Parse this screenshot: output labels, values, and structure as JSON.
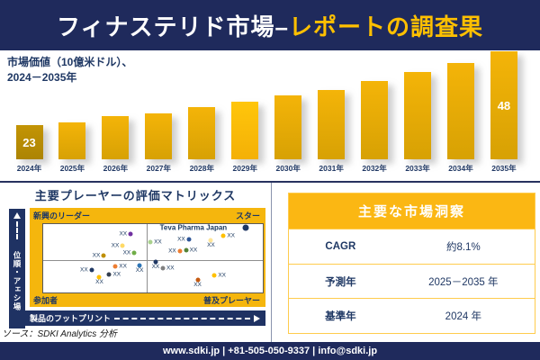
{
  "colors": {
    "navy": "#1F2A5C",
    "navy_text": "#1F3864",
    "gold_accent": "#FFC000",
    "bar_gold": "#D7A104",
    "bar_first_dark": "#AC8403",
    "bar_bright": "#FFC60B",
    "matrix_gold": "#F5B60D",
    "insights_header_gold": "#FBB713",
    "table_border_gold": "#FFCC4D"
  },
  "header": {
    "title_white": "フィナステリド市場–",
    "title_gold": "レポートの調査果"
  },
  "bar_section": {
    "subtitle_line1": "市場価値（10億米ドル）、",
    "subtitle_line2": "2024－2035年"
  },
  "chart_data": [
    {
      "type": "bar",
      "title": "市場価値（10億米ドル）、2024－2035年",
      "categories": [
        "2024年",
        "2025年",
        "2026年",
        "2027年",
        "2028年",
        "2029年",
        "2030年",
        "2031年",
        "2032年",
        "2033年",
        "2034年",
        "2035年"
      ],
      "values": [
        23,
        24,
        26,
        27,
        29,
        31,
        33,
        35,
        38,
        41,
        44,
        48
      ],
      "labeled_points": {
        "2024年": "23",
        "2035年": "48"
      },
      "ylabel": "10億米ドル",
      "grid": false,
      "legend": false
    },
    {
      "type": "scatter",
      "title": "主要プレーヤーの評価マトリックス",
      "xlabel": "製品のフットプリント",
      "ylabel": "市場シェア・順位",
      "quadrants": {
        "top_left": "新興のリーダー",
        "top_right": "スター",
        "bottom_left": "参加者",
        "bottom_right": "普及プレーヤー"
      },
      "annotation": "Teva Pharma Japan",
      "points": [
        {
          "x": 39.8,
          "y": 14.3,
          "color": "#7030A0",
          "label": "XX",
          "side": "left"
        },
        {
          "x": 36.2,
          "y": 31.2,
          "color": "#FFD966",
          "label": "XX",
          "side": "left"
        },
        {
          "x": 41.5,
          "y": 41.6,
          "color": "#70AD47",
          "label": "XX",
          "side": "left"
        },
        {
          "x": 27.6,
          "y": 45.5,
          "color": "#BF8F00",
          "label": "XX",
          "side": "left"
        },
        {
          "x": 92.3,
          "y": 5.0,
          "color": "#1F3864",
          "label": "",
          "side": "left",
          "name": "Teva Pharma Japan",
          "big": true
        },
        {
          "x": 48.8,
          "y": 26.0,
          "color": "#A9D18E",
          "label": "XX",
          "side": "right"
        },
        {
          "x": 66.3,
          "y": 22.1,
          "color": "#2E5597",
          "label": "XX",
          "side": "left"
        },
        {
          "x": 76.4,
          "y": 23.4,
          "color": "#FFE699",
          "label": "XX",
          "side": "below"
        },
        {
          "x": 82.1,
          "y": 16.9,
          "color": "#FFC000",
          "label": "XX",
          "side": "right"
        },
        {
          "x": 62.2,
          "y": 39.0,
          "color": "#ED7D31",
          "label": "XX",
          "side": "left"
        },
        {
          "x": 65.0,
          "y": 37.7,
          "color": "#548235",
          "label": "XX",
          "side": "right"
        },
        {
          "x": 32.9,
          "y": 62.3,
          "color": "#ED7D31",
          "label": "XX",
          "side": "right"
        },
        {
          "x": 43.9,
          "y": 61.0,
          "color": "#2E75B6",
          "label": "XX",
          "side": "below"
        },
        {
          "x": 22.0,
          "y": 67.5,
          "color": "#203864",
          "label": "XX",
          "side": "left"
        },
        {
          "x": 30.1,
          "y": 74.0,
          "color": "#333F50",
          "label": "XX",
          "side": "right"
        },
        {
          "x": 25.6,
          "y": 77.9,
          "color": "#FFC000",
          "label": "XX",
          "side": "below"
        },
        {
          "x": 51.2,
          "y": 55.8,
          "color": "#203864",
          "label": "XX",
          "side": "below"
        },
        {
          "x": 54.5,
          "y": 64.9,
          "color": "#808080",
          "label": "XX",
          "side": "right"
        },
        {
          "x": 70.3,
          "y": 81.8,
          "color": "#C55A11",
          "label": "XX",
          "side": "below"
        },
        {
          "x": 78.0,
          "y": 75.3,
          "color": "#FFC000",
          "label": "XX",
          "side": "right"
        }
      ]
    },
    {
      "type": "table",
      "title": "主要な市場洞察",
      "rows": [
        {
          "label": "CAGR",
          "value": "約8.1%"
        },
        {
          "label": "予測年",
          "value": "2025－2035 年"
        },
        {
          "label": "基準年",
          "value": "2024 年"
        }
      ]
    }
  ],
  "source": "ソース：SDKI Analytics 分析",
  "footer": {
    "text": "www.sdki.jp | +81-505-050-9337 | info@sdki.jp"
  }
}
